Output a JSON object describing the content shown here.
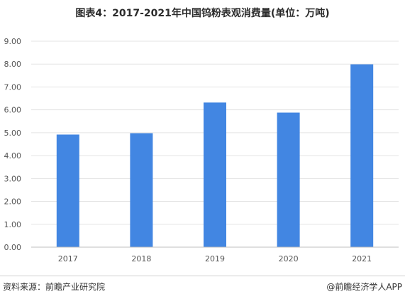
{
  "title": "图表4：2017-2021年中国钨粉表观消费量(单位：万吨)",
  "source": {
    "left": "资料来源：前瞻产业研究院",
    "right": "@前瞻经济学人APP"
  },
  "colors": {
    "bar": "#4286e2",
    "grid": "#e3e3e3",
    "axis": "#bfbfbf"
  },
  "chart_data": {
    "type": "bar",
    "categories": [
      "2017",
      "2018",
      "2019",
      "2020",
      "2021"
    ],
    "values": [
      4.92,
      4.98,
      6.32,
      5.88,
      7.99
    ],
    "title": "图表4：2017-2021年中国钨粉表观消费量(单位：万吨)",
    "xlabel": "",
    "ylabel": "",
    "ylim": [
      0,
      9
    ],
    "yticks": [
      "0.00",
      "1.00",
      "2.00",
      "3.00",
      "4.00",
      "5.00",
      "6.00",
      "7.00",
      "8.00",
      "9.00"
    ],
    "grid": true,
    "legend": "none"
  }
}
